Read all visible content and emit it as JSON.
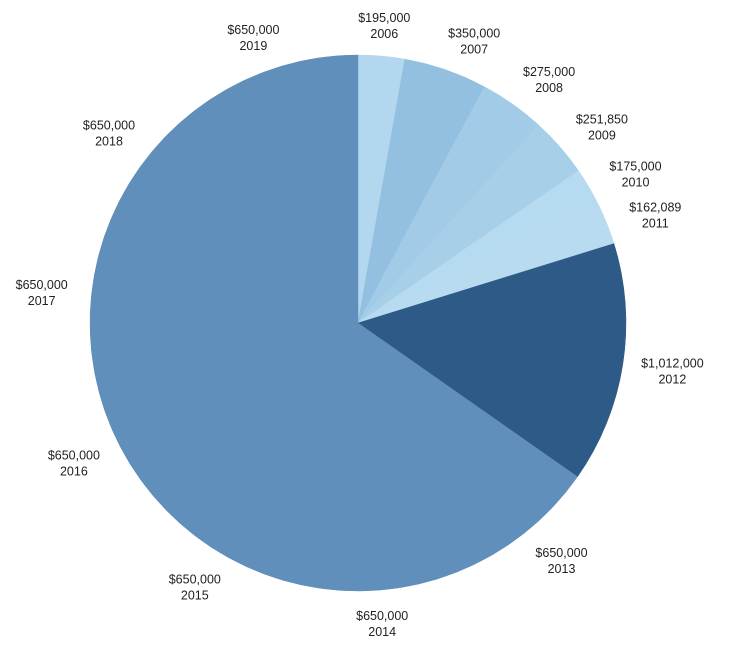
{
  "chart_data": {
    "type": "pie",
    "title": "",
    "slices": [
      {
        "category": "2006",
        "value": 195000,
        "label": "$195,000",
        "color": "#b3d7ee"
      },
      {
        "category": "2007",
        "value": 350000,
        "label": "$350,000",
        "color": "#93bfe0"
      },
      {
        "category": "2008",
        "value": 275000,
        "label": "$275,000",
        "color": "#a2cbe7"
      },
      {
        "category": "2009",
        "value": 251850,
        "label": "$251,850",
        "color": "#a7cfe8"
      },
      {
        "category": "2010",
        "value": 175000,
        "label": "$175,000",
        "color": "#b6dbf0"
      },
      {
        "category": "2011",
        "value": 162089,
        "label": "$162,089",
        "color": "#b8dbf0"
      },
      {
        "category": "2012",
        "value": 1012000,
        "label": "$1,012,000",
        "color": "#2d5a87"
      },
      {
        "category": "2013",
        "value": 650000,
        "label": "$650,000",
        "color": "#5f8fba"
      },
      {
        "category": "2014",
        "value": 650000,
        "label": "$650,000",
        "color": "#5f8fba"
      },
      {
        "category": "2015",
        "value": 650000,
        "label": "$650,000",
        "color": "#5f8fba"
      },
      {
        "category": "2016",
        "value": 650000,
        "label": "$650,000",
        "color": "#5f8fba"
      },
      {
        "category": "2017",
        "value": 650000,
        "label": "$650,000",
        "color": "#5f8fba"
      },
      {
        "category": "2018",
        "value": 650000,
        "label": "$650,000",
        "color": "#5f8fba"
      },
      {
        "category": "2019",
        "value": 650000,
        "label": "$650,000",
        "color": "#5f8fba"
      }
    ],
    "start_angle": "12 o'clock",
    "direction": "clockwise",
    "legend": "none"
  }
}
